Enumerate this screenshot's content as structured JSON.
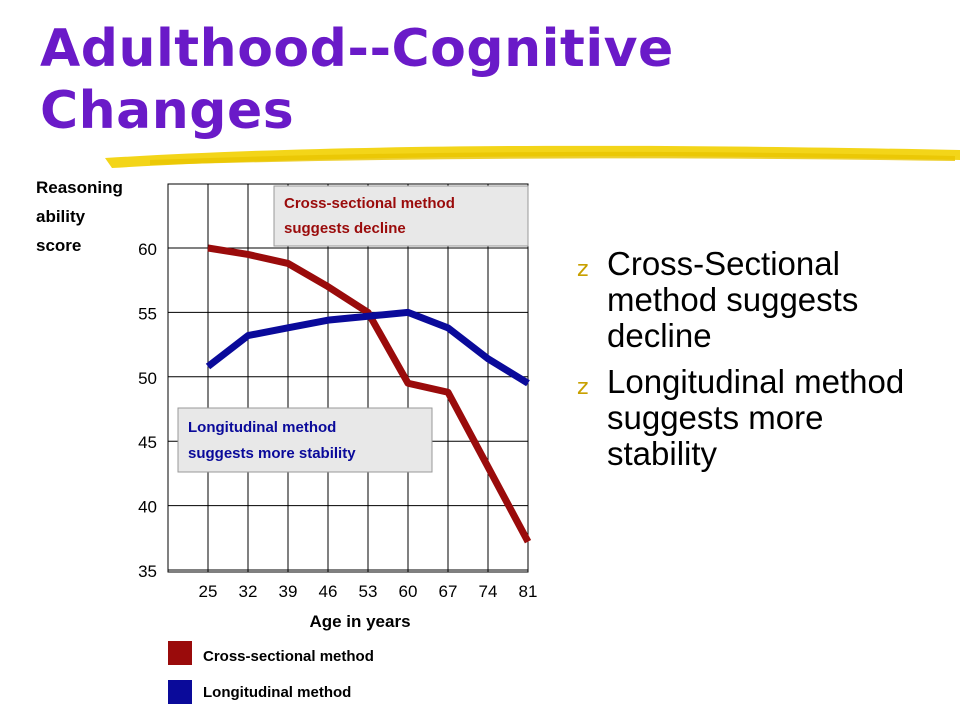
{
  "title_lines": [
    "Adulthood--Cognitive",
    "Changes"
  ],
  "bullets": [
    {
      "glyph": "z",
      "text": "Cross-Sectional method suggests decline"
    },
    {
      "glyph": "z",
      "text": "Longitudinal method suggests more stability"
    }
  ],
  "colors": {
    "title": "#6a1ac8",
    "accent_swoosh": "#f2d000",
    "cross_sectional": "#9a0b0b",
    "longitudinal": "#0a0a9a",
    "callout_bg": "#e8e8e8"
  },
  "chart_data": {
    "type": "line",
    "ylabel_lines": [
      "Reasoning",
      "ability",
      "score"
    ],
    "xlabel": "Age in years",
    "x": [
      25,
      32,
      39,
      46,
      53,
      60,
      67,
      74,
      81
    ],
    "xlim": [
      25,
      81
    ],
    "ylim": [
      35,
      60
    ],
    "yticks": [
      35,
      40,
      45,
      50,
      55,
      60
    ],
    "grid": true,
    "series": [
      {
        "name": "Cross-sectional method",
        "color": "#9a0b0b",
        "values": [
          60,
          59.5,
          58.8,
          57,
          55,
          49.5,
          48.8,
          43,
          37.2
        ]
      },
      {
        "name": "Longitudinal method",
        "color": "#0a0a9a",
        "values": [
          50.8,
          53.2,
          53.8,
          54.4,
          54.7,
          55,
          53.8,
          51.4,
          49.5
        ]
      }
    ],
    "annotations": [
      {
        "lines": [
          "Cross-sectional method",
          "suggests decline"
        ],
        "color": "#9a0b0b"
      },
      {
        "lines": [
          "Longitudinal method",
          "suggests more stability"
        ],
        "color": "#0a0a9a"
      }
    ],
    "legend_position": "bottom-left"
  }
}
